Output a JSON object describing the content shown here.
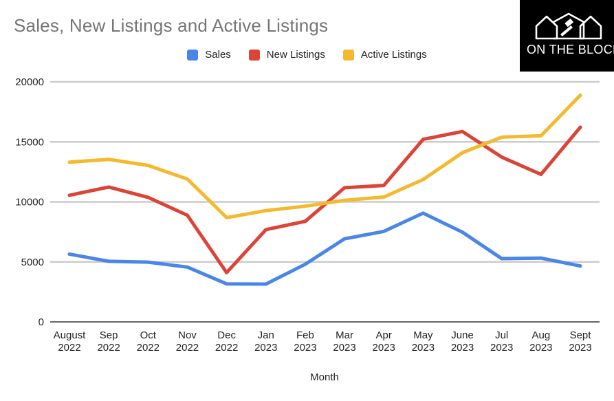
{
  "logo": {
    "text": "ON THE BLOCK",
    "icon": "houses-with-gavel-icon"
  },
  "chart_data": {
    "type": "line",
    "title": "Sales, New Listings and Active Listings",
    "xlabel": "Month",
    "ylabel": "",
    "ylim": [
      0,
      20000
    ],
    "yticks": [
      0,
      5000,
      10000,
      15000,
      20000
    ],
    "grid": true,
    "legend_position": "top",
    "categories": [
      [
        "August",
        "2022"
      ],
      [
        "Sep",
        "2022"
      ],
      [
        "Oct",
        "2022"
      ],
      [
        "Nov",
        "2022"
      ],
      [
        "Dec",
        "2022"
      ],
      [
        "Jan",
        "2023"
      ],
      [
        "Feb",
        "2023"
      ],
      [
        "Mar",
        "2023"
      ],
      [
        "Apr",
        "2023"
      ],
      [
        "May",
        "2023"
      ],
      [
        "June",
        "2023"
      ],
      [
        "Jul",
        "2023"
      ],
      [
        "Aug",
        "2023"
      ],
      [
        "Sept",
        "2023"
      ]
    ],
    "series": [
      {
        "name": "Sales",
        "color": "#4a86e8",
        "values": [
          5650,
          5050,
          4980,
          4570,
          3170,
          3150,
          4800,
          6920,
          7540,
          9060,
          7480,
          5270,
          5320,
          4660
        ]
      },
      {
        "name": "New Listings",
        "color": "#db4437",
        "values": [
          10550,
          11240,
          10380,
          8880,
          4110,
          7690,
          8380,
          11180,
          11370,
          15210,
          15860,
          13730,
          12290,
          16220
        ]
      },
      {
        "name": "Active Listings",
        "color": "#f4b92f",
        "values": [
          13310,
          13540,
          13040,
          11900,
          8690,
          9270,
          9640,
          10130,
          10400,
          11860,
          14100,
          15390,
          15510,
          18880
        ]
      }
    ]
  }
}
